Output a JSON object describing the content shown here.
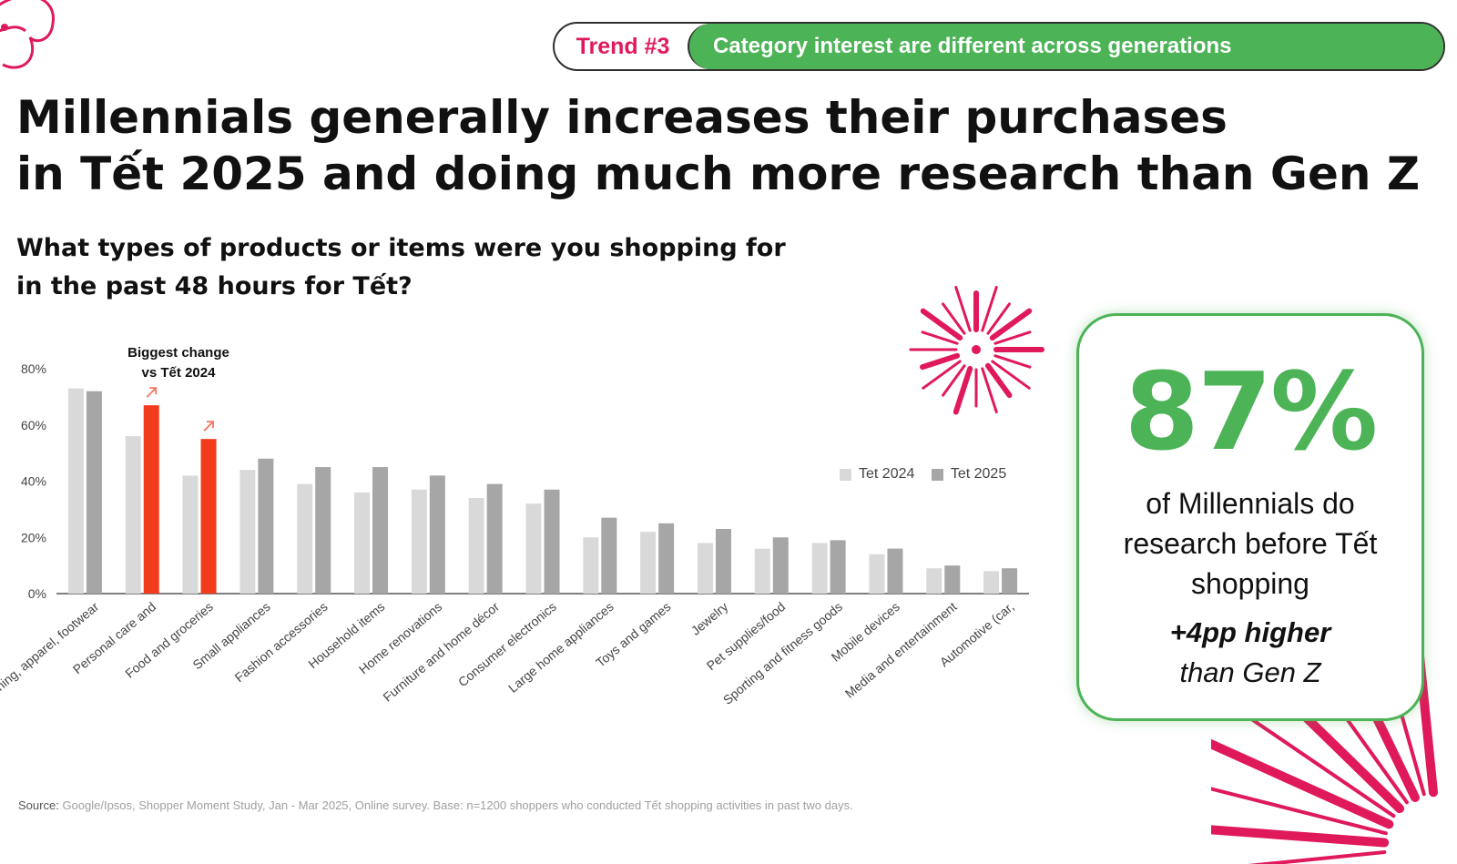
{
  "trend": {
    "label": "Trend #3",
    "text": "Category interest are different across generations"
  },
  "headline": {
    "line1": "Millennials generally increases their purchases",
    "line2": "in Tết 2025 and doing much more research than Gen Z"
  },
  "question": {
    "line1": "What types of products or items were you shopping for",
    "line2": "in the past 48 hours for Tết?"
  },
  "stat": {
    "value": "87%",
    "desc_line1": "of Millennials do",
    "desc_line2": "research before Tết",
    "desc_line3": "shopping",
    "delta_line1": "+4pp higher",
    "delta_line2": "than Gen Z"
  },
  "source": {
    "label": "Source:",
    "text": "Google/Ipsos, Shopper Moment Study, Jan - Mar 2025, Online survey. Base: n=1200 shoppers who conducted Tết shopping activities in past two days."
  },
  "colors": {
    "accent_green": "#4cb356",
    "accent_pink": "#e0195b",
    "highlight_red": "#f23a1c",
    "tet2024_gray": "#d9d9d9",
    "tet2025_gray": "#a6a6a6"
  },
  "chart_data": {
    "type": "bar",
    "categories": [
      "Clothing, apparel, footwear",
      "Personal care and",
      "Food and groceries",
      "Small appliances",
      "Fashion accessories",
      "Household items",
      "Home renovations",
      "Furniture and home décor",
      "Consumer electronics",
      "Large home appliances",
      "Toys and games",
      "Jewelry",
      "Pet supplies/food",
      "Sporting and fitness goods",
      "Mobile devices",
      "Media and entertainment",
      "Automotive (car,"
    ],
    "series": [
      {
        "name": "Tet 2024",
        "values": [
          73,
          56,
          42,
          44,
          39,
          36,
          37,
          34,
          32,
          20,
          22,
          18,
          16,
          18,
          14,
          9,
          8
        ]
      },
      {
        "name": "Tet 2025",
        "values": [
          72,
          67,
          55,
          48,
          45,
          45,
          42,
          39,
          37,
          27,
          25,
          23,
          20,
          19,
          16,
          10,
          9
        ]
      }
    ],
    "highlighted": [
      "Personal care and",
      "Food and groceries"
    ],
    "annotation": {
      "line1": "Biggest change",
      "line2": "vs Tết 2024"
    },
    "yticks": [
      "0%",
      "20%",
      "40%",
      "60%",
      "80%"
    ],
    "ylim": [
      0,
      80
    ],
    "grid": false,
    "legend_position": "right"
  }
}
